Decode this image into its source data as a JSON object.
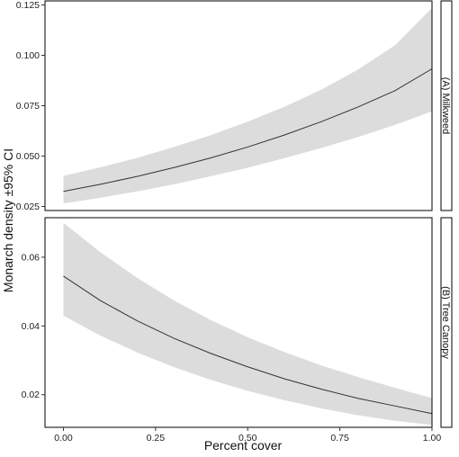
{
  "chart_data": {
    "type": "line",
    "xlabel": "Percent cover",
    "ylabel": "Monarch density ±95% CI",
    "x_ticks": [
      "0.00",
      "0.25",
      "0.50",
      "0.75",
      "1.00"
    ],
    "x_tick_values": [
      0,
      0.25,
      0.5,
      0.75,
      1.0
    ],
    "xlim": [
      -0.05,
      1.0
    ],
    "panels": [
      {
        "strip": "(A) Milkweed",
        "ylim": [
          0.023,
          0.127
        ],
        "y_ticks": [
          "0.025",
          "0.050",
          "0.075",
          "0.100",
          "0.125"
        ],
        "y_tick_values": [
          0.025,
          0.05,
          0.075,
          0.1,
          0.125
        ],
        "series": [
          {
            "x": [
              0,
              0.1,
              0.2,
              0.3,
              0.4,
              0.5,
              0.6,
              0.7,
              0.8,
              0.9,
              1.0
            ],
            "fit": [
              0.0325,
              0.036,
              0.0399,
              0.0443,
              0.0491,
              0.0545,
              0.0605,
              0.0671,
              0.0744,
              0.0825,
              0.0933
            ],
            "lower": [
              0.0265,
              0.0293,
              0.0325,
              0.036,
              0.04,
              0.0442,
              0.049,
              0.054,
              0.0595,
              0.0655,
              0.0722
            ],
            "upper": [
              0.0402,
              0.0444,
              0.0491,
              0.0545,
              0.0604,
              0.0671,
              0.0745,
              0.083,
              0.093,
              0.105,
              0.1235
            ]
          }
        ]
      },
      {
        "strip": "(B) Tree Canopy",
        "ylim": [
          0.0105,
          0.0715
        ],
        "y_ticks": [
          "0.02",
          "0.04",
          "0.06"
        ],
        "y_tick_values": [
          0.02,
          0.04,
          0.06
        ],
        "series": [
          {
            "x": [
              0,
              0.1,
              0.2,
              0.3,
              0.4,
              0.5,
              0.6,
              0.7,
              0.8,
              0.9,
              1.0
            ],
            "fit": [
              0.0545,
              0.0474,
              0.0415,
              0.0364,
              0.032,
              0.0281,
              0.0246,
              0.0216,
              0.0189,
              0.0167,
              0.0145
            ],
            "lower": [
              0.043,
              0.0372,
              0.0323,
              0.028,
              0.0243,
              0.0211,
              0.0184,
              0.016,
              0.014,
              0.0124,
              0.0112
            ],
            "upper": [
              0.07,
              0.0615,
              0.054,
              0.0474,
              0.0417,
              0.0367,
              0.0324,
              0.0285,
              0.0251,
              0.022,
              0.019
            ]
          }
        ]
      }
    ]
  }
}
